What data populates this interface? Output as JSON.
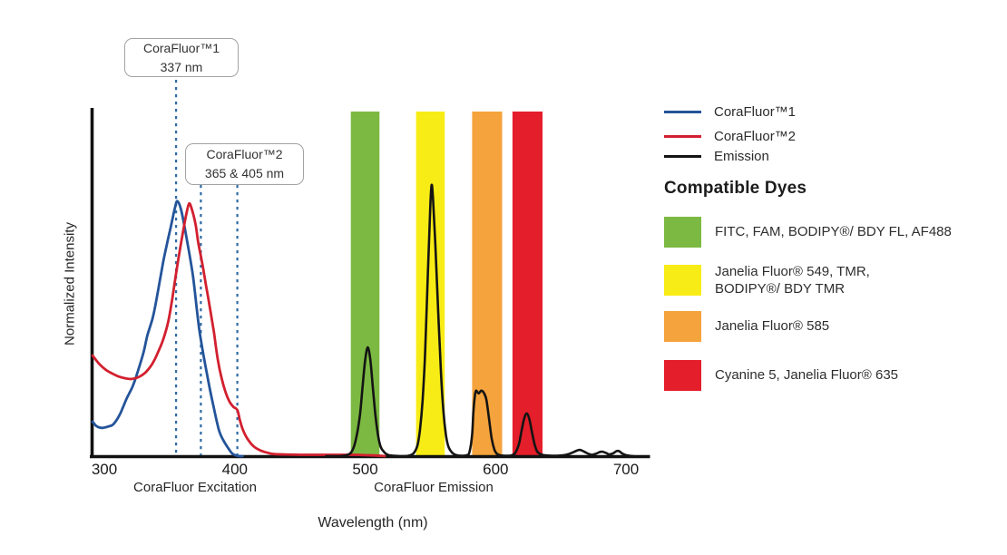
{
  "chart_data": {
    "type": "line",
    "title": "",
    "xlabel": "Wavelength (nm)",
    "ylabel": "Normalized Intensity",
    "x_ticks": [
      300,
      400,
      500,
      600,
      700
    ],
    "x_range_nm": [
      289,
      718
    ],
    "y_range": [
      0,
      1.05
    ],
    "grid": false,
    "axis_captions": [
      {
        "text": "CoraFluor Excitation",
        "center_nm": 370
      },
      {
        "text": "CoraFluor Emission",
        "center_nm": 553
      }
    ],
    "annotations": [
      {
        "label_lines": [
          "CoraFluor™1",
          "337 nm"
        ],
        "lines_nm": [
          355
        ]
      },
      {
        "label_lines": [
          "CoraFluor™2",
          "365 & 405 nm"
        ],
        "lines_nm": [
          374,
          402
        ]
      }
    ],
    "callout_dash_color": "#2f6aa3",
    "bands": [
      {
        "name": "FITC window",
        "from_nm": 489,
        "to_nm": 511,
        "color": "#7cb942"
      },
      {
        "name": "TMR window",
        "from_nm": 539,
        "to_nm": 561,
        "color": "#f8ec16"
      },
      {
        "name": "JF585 window",
        "from_nm": 582,
        "to_nm": 605,
        "color": "#f5a33c"
      },
      {
        "name": "Cy5 window",
        "from_nm": 613,
        "to_nm": 636,
        "color": "#e41e2a"
      }
    ],
    "series": [
      {
        "name": "CoraFluor™1",
        "color": "#24549a",
        "width": 2.8,
        "points": [
          [
            291,
            0.1
          ],
          [
            294,
            0.087
          ],
          [
            298,
            0.082
          ],
          [
            303,
            0.086
          ],
          [
            307,
            0.093
          ],
          [
            312,
            0.122
          ],
          [
            317,
            0.166
          ],
          [
            322,
            0.205
          ],
          [
            326,
            0.25
          ],
          [
            330,
            0.3
          ],
          [
            333,
            0.35
          ],
          [
            337,
            0.4
          ],
          [
            340,
            0.455
          ],
          [
            345,
            0.561
          ],
          [
            348,
            0.615
          ],
          [
            351,
            0.666
          ],
          [
            354,
            0.718
          ],
          [
            356,
            0.74
          ],
          [
            359,
            0.713
          ],
          [
            363,
            0.634
          ],
          [
            368,
            0.521
          ],
          [
            373,
            0.363
          ],
          [
            379,
            0.232
          ],
          [
            384,
            0.139
          ],
          [
            388,
            0.074
          ],
          [
            391,
            0.048
          ],
          [
            394,
            0.029
          ],
          [
            398,
            0.008
          ],
          [
            402,
            0.001
          ],
          [
            406,
            0.0
          ]
        ]
      },
      {
        "name": "CoraFluor™2",
        "color": "#d2202f",
        "width": 2.8,
        "points": [
          [
            291,
            0.292
          ],
          [
            296,
            0.268
          ],
          [
            301,
            0.251
          ],
          [
            306,
            0.24
          ],
          [
            311,
            0.231
          ],
          [
            316,
            0.226
          ],
          [
            321,
            0.224
          ],
          [
            326,
            0.229
          ],
          [
            331,
            0.241
          ],
          [
            335,
            0.258
          ],
          [
            338,
            0.276
          ],
          [
            341,
            0.3
          ],
          [
            345,
            0.337
          ],
          [
            349,
            0.39
          ],
          [
            352,
            0.455
          ],
          [
            355,
            0.53
          ],
          [
            358,
            0.6
          ],
          [
            361,
            0.665
          ],
          [
            363,
            0.705
          ],
          [
            365,
            0.733
          ],
          [
            367,
            0.718
          ],
          [
            370,
            0.672
          ],
          [
            372,
            0.62
          ],
          [
            375,
            0.561
          ],
          [
            378,
            0.495
          ],
          [
            381,
            0.43
          ],
          [
            384,
            0.36
          ],
          [
            387,
            0.28
          ],
          [
            390,
            0.225
          ],
          [
            393,
            0.185
          ],
          [
            396,
            0.158
          ],
          [
            399,
            0.143
          ],
          [
            402,
            0.134
          ],
          [
            404,
            0.104
          ],
          [
            406,
            0.079
          ],
          [
            409,
            0.055
          ],
          [
            413,
            0.034
          ],
          [
            416,
            0.024
          ],
          [
            420,
            0.016
          ],
          [
            425,
            0.01
          ],
          [
            430,
            0.006
          ],
          [
            438,
            0.005
          ],
          [
            450,
            0.004
          ],
          [
            465,
            0.004
          ],
          [
            480,
            0.004
          ],
          [
            492,
            0.004
          ],
          [
            500,
            0.003
          ],
          [
            507,
            0.002
          ],
          [
            512,
            0.001
          ],
          [
            515,
            0.0
          ]
        ]
      },
      {
        "name": "Emission",
        "color": "#141414",
        "width": 2.6,
        "points": [
          [
            470,
            0.0
          ],
          [
            480,
            0.0
          ],
          [
            486,
            0.003
          ],
          [
            490,
            0.015
          ],
          [
            493,
            0.05
          ],
          [
            496,
            0.12
          ],
          [
            498,
            0.2
          ],
          [
            500,
            0.278
          ],
          [
            502,
            0.316
          ],
          [
            504,
            0.278
          ],
          [
            506,
            0.195
          ],
          [
            508,
            0.115
          ],
          [
            510,
            0.058
          ],
          [
            512,
            0.026
          ],
          [
            515,
            0.01
          ],
          [
            518,
            0.003
          ],
          [
            522,
            0.001
          ],
          [
            527,
            0.0
          ],
          [
            533,
            0.001
          ],
          [
            537,
            0.008
          ],
          [
            540,
            0.03
          ],
          [
            542,
            0.075
          ],
          [
            544,
            0.16
          ],
          [
            546,
            0.3
          ],
          [
            548,
            0.52
          ],
          [
            550,
            0.73
          ],
          [
            551,
            0.787
          ],
          [
            552,
            0.748
          ],
          [
            554,
            0.6
          ],
          [
            556,
            0.42
          ],
          [
            558,
            0.252
          ],
          [
            560,
            0.13
          ],
          [
            562,
            0.06
          ],
          [
            564,
            0.026
          ],
          [
            567,
            0.009
          ],
          [
            570,
            0.003
          ],
          [
            574,
            0.001
          ],
          [
            578,
            0.003
          ],
          [
            580,
            0.012
          ],
          [
            582,
            0.062
          ],
          [
            583,
            0.128
          ],
          [
            584,
            0.172
          ],
          [
            585,
            0.19
          ],
          [
            587,
            0.182
          ],
          [
            589,
            0.19
          ],
          [
            591,
            0.184
          ],
          [
            593,
            0.163
          ],
          [
            595,
            0.108
          ],
          [
            597,
            0.052
          ],
          [
            599,
            0.02
          ],
          [
            601,
            0.007
          ],
          [
            604,
            0.002
          ],
          [
            608,
            0.001
          ],
          [
            612,
            0.002
          ],
          [
            615,
            0.009
          ],
          [
            618,
            0.036
          ],
          [
            620,
            0.075
          ],
          [
            622,
            0.11
          ],
          [
            624,
            0.124
          ],
          [
            626,
            0.106
          ],
          [
            628,
            0.068
          ],
          [
            630,
            0.033
          ],
          [
            632,
            0.013
          ],
          [
            635,
            0.005
          ],
          [
            639,
            0.002
          ],
          [
            645,
            0.001
          ],
          [
            651,
            0.002
          ],
          [
            656,
            0.006
          ],
          [
            660,
            0.012
          ],
          [
            663,
            0.017
          ],
          [
            665,
            0.018
          ],
          [
            668,
            0.013
          ],
          [
            671,
            0.007
          ],
          [
            674,
            0.004
          ],
          [
            677,
            0.007
          ],
          [
            680,
            0.012
          ],
          [
            682,
            0.013
          ],
          [
            685,
            0.009
          ],
          [
            687,
            0.005
          ],
          [
            690,
            0.008
          ],
          [
            693,
            0.015
          ],
          [
            695,
            0.014
          ],
          [
            697,
            0.008
          ],
          [
            700,
            0.003
          ],
          [
            703,
            0.001
          ],
          [
            706,
            0.0
          ]
        ]
      }
    ]
  },
  "legend": {
    "items": [
      {
        "label": "CoraFluor™1",
        "color": "#24549a"
      },
      {
        "label": "CoraFluor™2",
        "color": "#d2202f"
      },
      {
        "label": "Emission",
        "color": "#141414"
      }
    ]
  },
  "compatible_dyes": {
    "title": "Compatible Dyes",
    "items": [
      {
        "color": "#7cb942",
        "lines": [
          "FITC, FAM, BODIPY®/ BDY FL, AF488"
        ]
      },
      {
        "color": "#f8ec16",
        "lines": [
          "Janelia Fluor® 549, TMR,",
          "BODIPY®/ BDY TMR"
        ]
      },
      {
        "color": "#f5a33c",
        "lines": [
          "Janelia Fluor® 585"
        ]
      },
      {
        "color": "#e41e2a",
        "lines": [
          "Cyanine 5, Janelia Fluor® 635"
        ]
      }
    ]
  }
}
